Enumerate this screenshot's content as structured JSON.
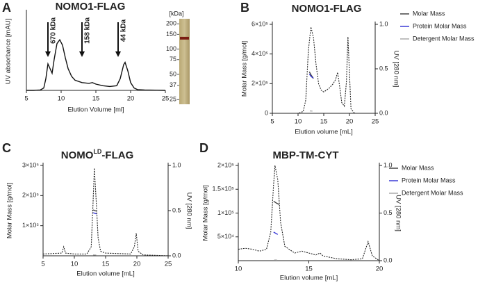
{
  "chart_data": [
    {
      "type": "line",
      "panel_label": "A",
      "title": "NOMO1-FLAG",
      "y_label": "UV absorbance [mAU]",
      "x_label": "Elution Volume [ml]",
      "xlim": [
        5,
        25
      ],
      "xticks": [
        5,
        10,
        15,
        20,
        25
      ],
      "ylim": [
        0,
        100
      ],
      "series": [
        {
          "color": "#111111",
          "dashed": false,
          "x": [
            5,
            6,
            7,
            7.5,
            7.8,
            8.1,
            8.4,
            8.7,
            9.0,
            9.4,
            9.8,
            10.2,
            10.6,
            11,
            11.5,
            12,
            13,
            14,
            14.5,
            15,
            16,
            17,
            18,
            18.5,
            19,
            19.2,
            19.6,
            20,
            20.5,
            21,
            22,
            25
          ],
          "values": [
            0,
            0,
            0.5,
            3,
            15,
            34,
            28,
            22,
            40,
            60,
            65,
            58,
            42,
            28,
            18,
            13,
            10,
            9,
            10,
            8,
            6,
            5,
            6,
            15,
            33,
            36,
            25,
            10,
            3,
            1,
            0.5,
            0
          ]
        }
      ],
      "annotations": [
        {
          "label": "670 kDa",
          "x": 8.1
        },
        {
          "label": "158 kDa",
          "x": 13
        },
        {
          "label": "44 kDa",
          "x": 18.2
        }
      ],
      "gel": {
        "title": "[kDa]",
        "markers": [
          200,
          150,
          100,
          75,
          50,
          37,
          25
        ]
      }
    },
    {
      "type": "line",
      "panel_label": "B",
      "title": "NOMO1-FLAG",
      "y_label": "Molar Mass [g/mol]",
      "y2_label": "UV [280 nm]",
      "x_label": "Elution volume [mL]",
      "xlim": [
        5,
        25
      ],
      "xticks": [
        5,
        10,
        15,
        20,
        25
      ],
      "ylim": [
        0,
        600000
      ],
      "yticks": [
        0,
        {
          "value": 200000,
          "label": "2×10⁵"
        },
        {
          "value": 400000,
          "label": "4×10⁵"
        },
        {
          "value": 600000,
          "label": "6×10⁵"
        }
      ],
      "y2lim": [
        0,
        1
      ],
      "y2ticks": [
        {
          "value": 0,
          "label": "0.0"
        },
        {
          "value": 0.5,
          "label": "0.5"
        },
        {
          "value": 1,
          "label": "1.0"
        }
      ],
      "legend": "upper right",
      "series": [
        {
          "name": "Molar Mass",
          "color": "#444444",
          "x": [
            12.2,
            12.5,
            12.8,
            13.0
          ],
          "values": [
            280000,
            260000,
            245000,
            235000
          ]
        },
        {
          "name": "Protein Molar Mass",
          "color": "#3a3ad6",
          "x": [
            12.2,
            12.5,
            12.9
          ],
          "values": [
            265000,
            250000,
            238000
          ]
        },
        {
          "name": "Detergent Molar Mass",
          "color": "#aaaaaa",
          "x": [
            12.3,
            12.8
          ],
          "values": [
            16000,
            15000
          ]
        },
        {
          "color": "#222222",
          "dashed": true,
          "axis": "y2",
          "x": [
            5,
            10,
            11,
            11.5,
            12,
            12.5,
            13,
            13.5,
            14,
            14.5,
            15,
            16,
            16.8,
            17.3,
            17.7,
            18.1,
            18.5,
            19,
            19.4,
            19.7,
            20,
            20.3,
            21,
            25
          ],
          "values": [
            0,
            0,
            0.02,
            0.15,
            0.7,
            0.97,
            0.85,
            0.55,
            0.33,
            0.26,
            0.24,
            0.28,
            0.33,
            0.38,
            0.46,
            0.3,
            0.12,
            0.08,
            0.35,
            0.86,
            0.45,
            0.05,
            0,
            0
          ]
        }
      ]
    },
    {
      "type": "line",
      "panel_label": "C",
      "title": [
        "NOMO",
        "LD",
        "-FLAG"
      ],
      "y_label": "Molar Mass [g/mol]",
      "y2_label": "UV [280 nm]",
      "x_label": "Elution volume [mL]",
      "xlim": [
        5,
        25
      ],
      "xticks": [
        5,
        10,
        15,
        20,
        25
      ],
      "ylim": [
        0,
        300000
      ],
      "yticks": [
        {
          "value": 100000,
          "label": "1×10⁵"
        },
        {
          "value": 200000,
          "label": "2×10⁵"
        },
        {
          "value": 300000,
          "label": "3×10⁵"
        }
      ],
      "y2lim": [
        0,
        1
      ],
      "y2ticks": [
        {
          "value": 0,
          "label": "0.0"
        },
        {
          "value": 0.5,
          "label": "0.5"
        },
        {
          "value": 1,
          "label": "1.0"
        }
      ],
      "series": [
        {
          "color": "#444444",
          "x": [
            13.0,
            13.3,
            13.6
          ],
          "values": [
            152000,
            150000,
            148000
          ]
        },
        {
          "color": "#3a3ad6",
          "x": [
            13.0,
            13.3,
            13.6
          ],
          "values": [
            143000,
            141000,
            139000
          ]
        },
        {
          "color": "#aaaaaa",
          "x": [
            13.0,
            13.5
          ],
          "values": [
            3000,
            2500
          ]
        },
        {
          "color": "#222222",
          "dashed": true,
          "axis": "y2",
          "x": [
            5,
            8,
            8.3,
            8.6,
            10,
            12,
            12.7,
            13,
            13.2,
            13.5,
            13.8,
            14.2,
            15,
            19,
            19.6,
            19.9,
            20.2,
            21,
            25
          ],
          "values": [
            0.02,
            0.03,
            0.1,
            0.03,
            0.02,
            0.02,
            0.1,
            0.6,
            0.97,
            0.6,
            0.2,
            0.05,
            0.03,
            0.02,
            0.1,
            0.25,
            0.05,
            0.01,
            0
          ]
        }
      ]
    },
    {
      "type": "line",
      "panel_label": "D",
      "title": "MBP-TM-CYT",
      "y_label": "Molar Mass [g/mol]",
      "y2_label": "UV [280 nm]",
      "x_label": "Elution volume [mL]",
      "xlim": [
        10,
        20
      ],
      "xticks": [
        10,
        15,
        20
      ],
      "ylim": [
        0,
        200000
      ],
      "yticks": [
        {
          "value": 50000,
          "label": "5×10⁴"
        },
        {
          "value": 100000,
          "label": "1×10⁵"
        },
        {
          "value": 150000,
          "label": "1.5×10⁵"
        },
        {
          "value": 200000,
          "label": "2×10⁵"
        }
      ],
      "y2lim": [
        0,
        1
      ],
      "y2ticks": [
        {
          "value": 0,
          "label": "0.0"
        },
        {
          "value": 0.5,
          "label": "0.5"
        },
        {
          "value": 1,
          "label": "1.0"
        }
      ],
      "legend": "upper right",
      "series": [
        {
          "name": "Molar Mass",
          "color": "#444444",
          "x": [
            12.5,
            12.7,
            12.9
          ],
          "values": [
            125000,
            121000,
            118000
          ]
        },
        {
          "name": "Protein Molar Mass",
          "color": "#3a3ad6",
          "x": [
            12.5,
            12.65,
            12.8
          ],
          "values": [
            60000,
            57500,
            55000
          ]
        },
        {
          "name": "Detergent Molar Mass",
          "color": "#aaaaaa",
          "x": [
            12.55,
            12.75
          ],
          "values": [
            1500,
            1200
          ]
        },
        {
          "color": "#222222",
          "dashed": true,
          "axis": "y2",
          "x": [
            10,
            10.5,
            11,
            11.5,
            12,
            12.3,
            12.5,
            12.6,
            12.8,
            13,
            13.3,
            14,
            14.5,
            15,
            15.5,
            15.8,
            16,
            17,
            18,
            18.8,
            19.2,
            19.5,
            20
          ],
          "values": [
            0.12,
            0.13,
            0.12,
            0.1,
            0.12,
            0.3,
            0.8,
            1.0,
            0.85,
            0.4,
            0.15,
            0.08,
            0.1,
            0.08,
            0.06,
            0.08,
            0.05,
            0.02,
            0.01,
            0.02,
            0.2,
            0.05,
            0
          ]
        }
      ]
    }
  ]
}
